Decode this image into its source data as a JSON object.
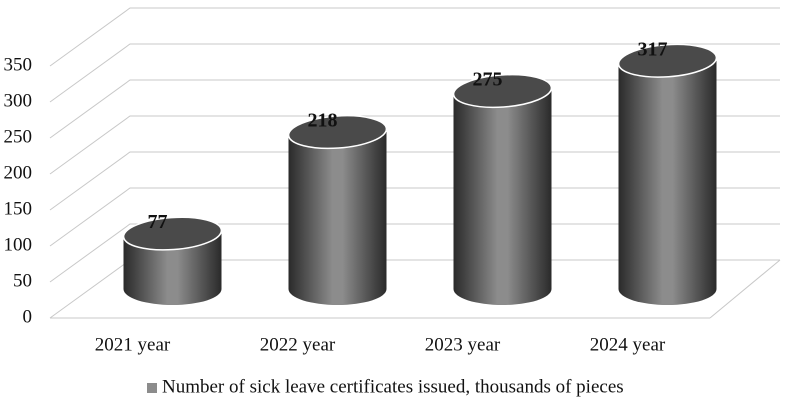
{
  "chart_data": {
    "type": "bar3d",
    "categories": [
      "2021 year",
      "2022 year",
      "2023 year",
      "2024 year"
    ],
    "series": [
      {
        "name": "Number of sick leave certificates issued, thousands of pieces",
        "color": "#8c8c8c",
        "values": [
          77,
          218,
          275,
          317
        ]
      }
    ],
    "ylim": [
      0,
      350
    ],
    "yticks": [
      0,
      50,
      100,
      150,
      200,
      250,
      300,
      350
    ],
    "grid": true,
    "legend": "bottom"
  }
}
